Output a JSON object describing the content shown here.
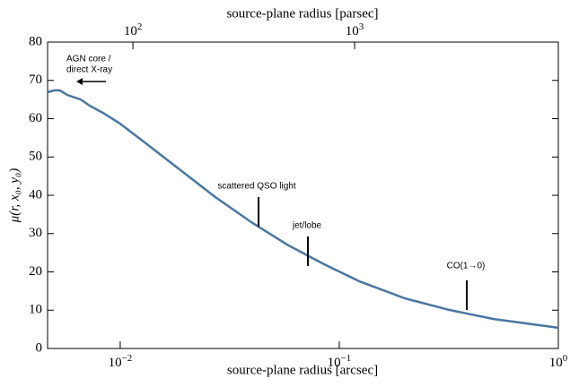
{
  "chart_data": {
    "type": "line",
    "x_label": "source-plane radius  [arcsec]",
    "x2_label": "source-plane radius  [parsec]",
    "y_label": "μ(r, x₀, y₀)",
    "x_scale": "log",
    "xlim": [
      0.00466,
      1
    ],
    "xticks": [
      {
        "value": 0.01,
        "label": "10−2"
      },
      {
        "value": 0.1,
        "label": "10−1"
      },
      {
        "value": 1,
        "label": "100"
      }
    ],
    "x2lim": [
      41.2,
      8300
    ],
    "x2ticks": [
      {
        "value": 100,
        "label": "102"
      },
      {
        "value": 1000,
        "label": "103"
      }
    ],
    "ylim": [
      0,
      80
    ],
    "yticks": [
      0,
      10,
      20,
      30,
      40,
      50,
      60,
      70,
      80
    ],
    "x": [
      0.00466,
      0.00498,
      0.00531,
      0.00573,
      0.0066,
      0.00726,
      0.00836,
      0.01,
      0.0128,
      0.0186,
      0.0272,
      0.0396,
      0.0578,
      0.0851,
      0.124,
      0.199,
      0.316,
      0.507,
      1
    ],
    "series": [
      {
        "color": "#4a77a0",
        "values": [
          66.9,
          67.4,
          67.4,
          66.2,
          65.0,
          63.4,
          61.5,
          58.7,
          54.0,
          46.8,
          39.5,
          33.0,
          27.1,
          22.0,
          17.5,
          13.1,
          10.1,
          7.7,
          5.4
        ]
      }
    ],
    "annotations": [
      {
        "lines": [
          "AGN core /",
          "direct X-ray"
        ]
      },
      {
        "lines": [
          "scattered QSO light"
        ]
      },
      {
        "lines": [
          "jet/lobe"
        ]
      },
      {
        "lines": [
          "CO(1→0)"
        ]
      }
    ]
  }
}
